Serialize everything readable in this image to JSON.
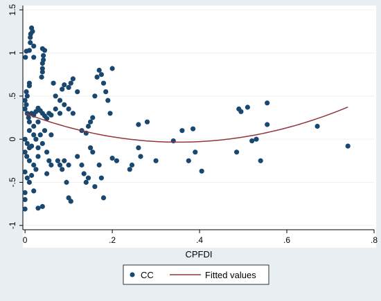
{
  "chart_data": {
    "type": "scatter",
    "xlabel": "CPFDI",
    "ylabel": "",
    "xlim": [
      -0.005,
      0.8
    ],
    "ylim": [
      -1.05,
      1.55
    ],
    "x_ticks": [
      {
        "v": 0,
        "label": "0"
      },
      {
        "v": 0.2,
        "label": ".2"
      },
      {
        "v": 0.4,
        "label": ".4"
      },
      {
        "v": 0.6,
        "label": ".6"
      },
      {
        "v": 0.8,
        "label": ".8"
      }
    ],
    "y_ticks": [
      {
        "v": 1.5,
        "label": "1.5"
      },
      {
        "v": 1,
        "label": "1"
      },
      {
        "v": 0.5,
        "label": ".5"
      },
      {
        "v": 0,
        "label": "0"
      },
      {
        "v": -0.5,
        "label": "-.5"
      },
      {
        "v": -1,
        "label": "-1"
      }
    ],
    "grid": true,
    "legend_position": "bottom",
    "colors": {
      "scatter": "#1a476f",
      "fit": "#90353b",
      "plot_bg": "#ffffff",
      "outer_bg": "#e9eef2",
      "grid": "#eaf2f3"
    },
    "series": [
      {
        "name": "CC",
        "kind": "scatter",
        "points": [
          [
            0.015,
            1.29
          ],
          [
            0.017,
            1.25
          ],
          [
            0.013,
            1.22
          ],
          [
            0.012,
            1.18
          ],
          [
            0.012,
            1.12
          ],
          [
            0.02,
            1.08
          ],
          [
            0.04,
            1.05
          ],
          [
            0.045,
            1.03
          ],
          [
            0.003,
            1.02
          ],
          [
            0.01,
            1.03
          ],
          [
            0.001,
            0.95
          ],
          [
            0.02,
            0.95
          ],
          [
            0.042,
            0.97
          ],
          [
            0.042,
            0.92
          ],
          [
            0.04,
            0.88
          ],
          [
            0.04,
            0.82
          ],
          [
            0.04,
            0.78
          ],
          [
            0.038,
            0.72
          ],
          [
            0.01,
            0.65
          ],
          [
            0.01,
            0.62
          ],
          [
            0.003,
            0.55
          ],
          [
            0.005,
            0.5
          ],
          [
            0.0,
            0.45
          ],
          [
            0.003,
            0.4
          ],
          [
            0.0,
            0.35
          ],
          [
            0.005,
            0.3
          ],
          [
            0.008,
            0.25
          ],
          [
            0.01,
            0.2
          ],
          [
            0.015,
            0.3
          ],
          [
            0.02,
            0.28
          ],
          [
            0.025,
            0.32
          ],
          [
            0.03,
            0.36
          ],
          [
            0.035,
            0.33
          ],
          [
            0.04,
            0.3
          ],
          [
            0.045,
            0.27
          ],
          [
            0.05,
            0.24
          ],
          [
            0.055,
            0.3
          ],
          [
            0.06,
            0.28
          ],
          [
            0.03,
            0.2
          ],
          [
            0.02,
            0.15
          ],
          [
            0.01,
            0.1
          ],
          [
            0.02,
            0.05
          ],
          [
            0.0,
            0.0
          ],
          [
            0.005,
            -0.05
          ],
          [
            0.01,
            -0.1
          ],
          [
            0.0,
            -0.15
          ],
          [
            0.004,
            -0.2
          ],
          [
            0.01,
            -0.25
          ],
          [
            0.02,
            -0.3
          ],
          [
            0.025,
            -0.35
          ],
          [
            0.0,
            -0.38
          ],
          [
            0.005,
            -0.45
          ],
          [
            0.01,
            -0.5
          ],
          [
            0.0,
            -0.62
          ],
          [
            0.0,
            -0.7
          ],
          [
            0.0,
            -0.81
          ],
          [
            0.02,
            -0.6
          ],
          [
            0.03,
            -0.8
          ],
          [
            0.04,
            -0.78
          ],
          [
            0.05,
            -0.4
          ],
          [
            0.06,
            0.05
          ],
          [
            0.065,
            0.65
          ],
          [
            0.07,
            0.5
          ],
          [
            0.08,
            0.45
          ],
          [
            0.085,
            0.58
          ],
          [
            0.09,
            0.63
          ],
          [
            0.1,
            0.6
          ],
          [
            0.105,
            0.65
          ],
          [
            0.11,
            0.7
          ],
          [
            0.12,
            0.55
          ],
          [
            0.07,
            0.35
          ],
          [
            0.08,
            0.3
          ],
          [
            0.09,
            0.4
          ],
          [
            0.1,
            0.35
          ],
          [
            0.11,
            0.3
          ],
          [
            0.075,
            -0.25
          ],
          [
            0.08,
            -0.3
          ],
          [
            0.085,
            -0.35
          ],
          [
            0.09,
            -0.25
          ],
          [
            0.1,
            -0.3
          ],
          [
            0.095,
            -0.5
          ],
          [
            0.1,
            -0.68
          ],
          [
            0.105,
            -0.72
          ],
          [
            0.12,
            -0.2
          ],
          [
            0.13,
            -0.3
          ],
          [
            0.135,
            -0.4
          ],
          [
            0.14,
            -0.5
          ],
          [
            0.145,
            -0.45
          ],
          [
            0.15,
            -0.1
          ],
          [
            0.155,
            -0.15
          ],
          [
            0.16,
            -0.55
          ],
          [
            0.17,
            -0.3
          ],
          [
            0.175,
            -0.45
          ],
          [
            0.18,
            -0.68
          ],
          [
            0.15,
            0.2
          ],
          [
            0.155,
            0.25
          ],
          [
            0.16,
            0.5
          ],
          [
            0.165,
            0.72
          ],
          [
            0.17,
            0.8
          ],
          [
            0.175,
            0.75
          ],
          [
            0.18,
            0.65
          ],
          [
            0.185,
            0.55
          ],
          [
            0.19,
            0.45
          ],
          [
            0.195,
            0.3
          ],
          [
            0.2,
            0.82
          ],
          [
            0.13,
            0.1
          ],
          [
            0.14,
            0.07
          ],
          [
            0.145,
            0.15
          ],
          [
            0.015,
            -0.08
          ],
          [
            0.03,
            -0.1
          ],
          [
            0.04,
            -0.05
          ],
          [
            0.05,
            -0.15
          ],
          [
            0.055,
            -0.25
          ],
          [
            0.06,
            -0.3
          ],
          [
            0.045,
            0.1
          ],
          [
            0.035,
            0.05
          ],
          [
            0.025,
            0.0
          ],
          [
            0.03,
            -0.2
          ],
          [
            0.015,
            -0.42
          ],
          [
            0.2,
            -0.22
          ],
          [
            0.21,
            -0.25
          ],
          [
            0.24,
            -0.35
          ],
          [
            0.26,
            -0.1
          ],
          [
            0.265,
            -0.2
          ],
          [
            0.28,
            0.2
          ],
          [
            0.3,
            -0.25
          ],
          [
            0.26,
            0.17
          ],
          [
            0.245,
            -0.3
          ],
          [
            0.34,
            -0.02
          ],
          [
            0.36,
            0.1
          ],
          [
            0.375,
            -0.25
          ],
          [
            0.385,
            0.12
          ],
          [
            0.39,
            -0.15
          ],
          [
            0.405,
            -0.37
          ],
          [
            0.485,
            -0.15
          ],
          [
            0.49,
            0.35
          ],
          [
            0.495,
            0.32
          ],
          [
            0.51,
            0.37
          ],
          [
            0.52,
            -0.02
          ],
          [
            0.53,
            0.0
          ],
          [
            0.54,
            -0.25
          ],
          [
            0.555,
            0.42
          ],
          [
            0.555,
            0.17
          ],
          [
            0.67,
            0.15
          ],
          [
            0.74,
            -0.08
          ]
        ]
      },
      {
        "name": "Fitted values",
        "kind": "line",
        "quadratic_coeffs": [
          0.3,
          -1.9,
          2.7
        ],
        "x_range": [
          0.0,
          0.74
        ]
      }
    ]
  }
}
